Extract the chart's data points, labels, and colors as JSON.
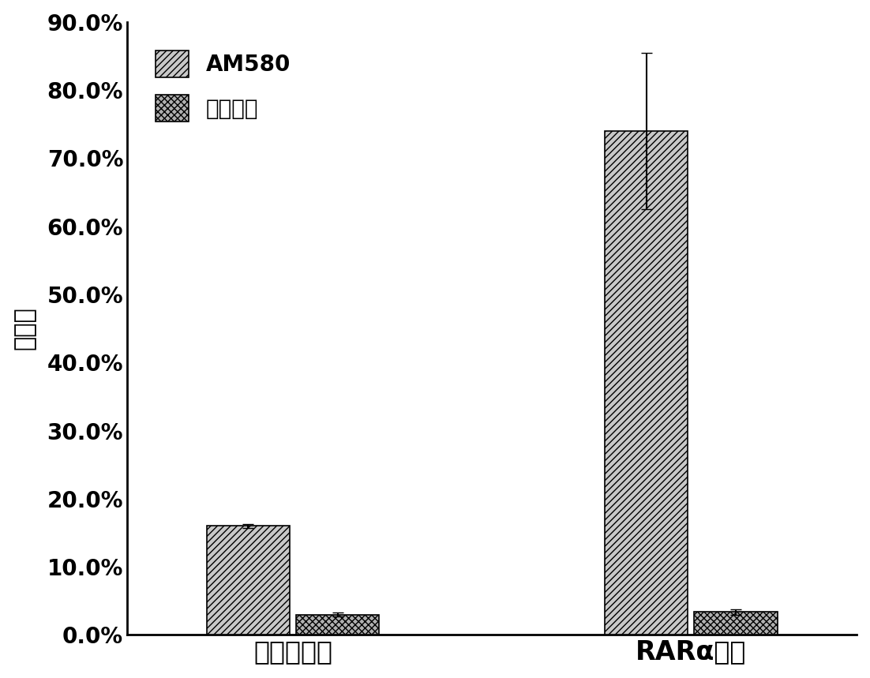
{
  "categories": [
    "空载体蛋白",
    "RARα蛋白"
  ],
  "series": [
    {
      "label": "AM580",
      "values": [
        0.16,
        0.74
      ],
      "errors": [
        0.003,
        0.115
      ],
      "hatch": "////",
      "facecolor": "#c8c8c8",
      "edgecolor": "#000000"
    },
    {
      "label": "罗格列酮",
      "values": [
        0.03,
        0.034
      ],
      "errors": [
        0.003,
        0.004
      ],
      "hatch": "xxxx",
      "facecolor": "#b0b0b0",
      "edgecolor": "#000000"
    }
  ],
  "ylabel": "回收率",
  "ylim": [
    0.0,
    0.9
  ],
  "yticks": [
    0.0,
    0.1,
    0.2,
    0.3,
    0.4,
    0.5,
    0.6,
    0.7,
    0.8,
    0.9
  ],
  "ytick_labels": [
    "0.0%",
    "10.0%",
    "20.0%",
    "30.0%",
    "40.0%",
    "50.0%",
    "60.0%",
    "70.0%",
    "80.0%",
    "90.0%"
  ],
  "bar_width": 0.25,
  "group_positions": [
    1.0,
    2.2
  ],
  "background_color": "#ffffff",
  "legend_loc": "upper left",
  "font_size_ticks": 20,
  "font_size_axis_labels": 22,
  "font_size_legend": 20,
  "font_size_xlabel": 24
}
